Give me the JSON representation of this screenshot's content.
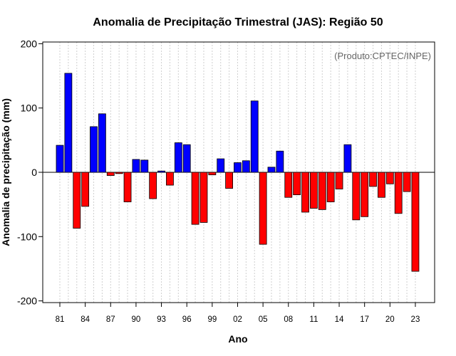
{
  "chart_data": {
    "type": "bar",
    "title": "Anomalia de Precipitação Trimestral (JAS): Região 50",
    "xlabel": "Ano",
    "ylabel": "Anomalia de precipitação (mm)",
    "credit": "(Produto:CPTEC/INPE)",
    "ylim": [
      -205,
      205
    ],
    "yticks": [
      -200,
      -100,
      0,
      100,
      200
    ],
    "grid": "vertical dotted",
    "positive_color": "#0000ff",
    "negative_color": "#ff0000",
    "categories": [
      1981,
      1982,
      1983,
      1984,
      1985,
      1986,
      1987,
      1988,
      1989,
      1990,
      1991,
      1992,
      1993,
      1994,
      1995,
      1996,
      1997,
      1998,
      1999,
      2000,
      2001,
      2002,
      2003,
      2004,
      2005,
      2006,
      2007,
      2008,
      2009,
      2010,
      2011,
      2012,
      2013,
      2014,
      2015,
      2016,
      2017,
      2018,
      2019,
      2020,
      2021,
      2022,
      2023
    ],
    "xtick_labels": [
      "81",
      "84",
      "87",
      "90",
      "93",
      "96",
      "99",
      "02",
      "05",
      "08",
      "11",
      "14",
      "17",
      "20",
      "23"
    ],
    "xtick_years": [
      1981,
      1984,
      1987,
      1990,
      1993,
      1996,
      1999,
      2002,
      2005,
      2008,
      2011,
      2014,
      2017,
      2020,
      2023
    ],
    "values": [
      42,
      154,
      -87,
      -53,
      71,
      91,
      -5,
      -2,
      -46,
      20,
      19,
      -41,
      2,
      -20,
      46,
      43,
      -81,
      -78,
      -4,
      21,
      -25,
      15,
      18,
      111,
      -112,
      8,
      33,
      -39,
      -35,
      -62,
      -56,
      -58,
      -46,
      -26,
      43,
      -74,
      -69,
      -22,
      -39,
      -18,
      -64,
      -30,
      -154
    ]
  }
}
